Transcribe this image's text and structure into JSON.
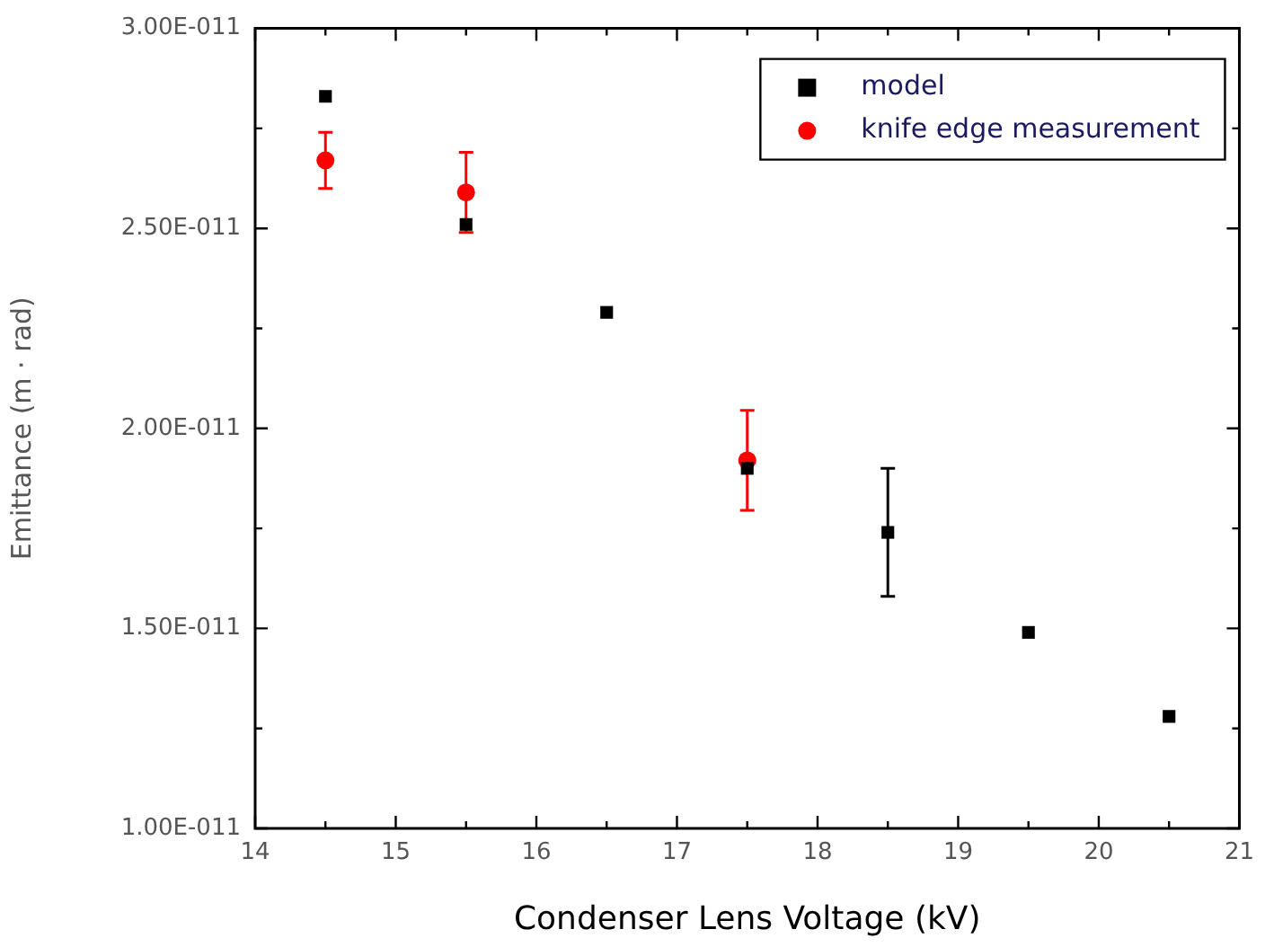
{
  "chart_data": {
    "type": "scatter",
    "xlabel": "Condenser Lens Voltage (kV)",
    "ylabel": "Emittance (m · rad)",
    "xlim": [
      14,
      21
    ],
    "xticks": [
      14,
      {
        "value": 14.5,
        "label": null
      },
      15,
      {
        "value": 15.5,
        "label": null
      },
      16,
      {
        "value": 16.5,
        "label": null
      },
      17,
      {
        "value": 17.5,
        "label": null
      },
      18,
      {
        "value": 18.5,
        "label": null
      },
      19,
      {
        "value": 19.5,
        "label": null
      },
      20,
      {
        "value": 20.5,
        "label": null
      },
      21
    ],
    "ylim": [
      1e-11,
      3e-11
    ],
    "yticks": [
      {
        "value": 1e-11,
        "label": "1.00E-011"
      },
      {
        "value": 1.25e-11,
        "label": null
      },
      {
        "value": 1.5e-11,
        "label": "1.50E-011"
      },
      {
        "value": 1.75e-11,
        "label": null
      },
      {
        "value": 2e-11,
        "label": "2.00E-011"
      },
      {
        "value": 2.25e-11,
        "label": null
      },
      {
        "value": 2.5e-11,
        "label": "2.50E-011"
      },
      {
        "value": 2.75e-11,
        "label": null
      },
      {
        "value": 3e-11,
        "label": "3.00E-011"
      }
    ],
    "legend": "top right",
    "series": [
      {
        "name": "model",
        "color": "#000000",
        "marker": "square",
        "x": [
          14.5,
          15.5,
          16.5,
          17.5,
          18.5,
          19.5,
          20.5
        ],
        "values": [
          2.83e-11,
          2.51e-11,
          2.29e-11,
          1.9e-11,
          1.74e-11,
          1.49e-11,
          1.28e-11
        ],
        "errors": [
          null,
          null,
          null,
          null,
          1.6e-12,
          null,
          null
        ]
      },
      {
        "name": "knife edge measurement",
        "color": "#ff0000",
        "marker": "circle",
        "x": [
          14.5,
          15.5,
          17.5
        ],
        "values": [
          2.67e-11,
          2.59e-11,
          1.92e-11
        ],
        "errors": [
          7e-13,
          1e-12,
          1.25e-12
        ]
      }
    ]
  }
}
